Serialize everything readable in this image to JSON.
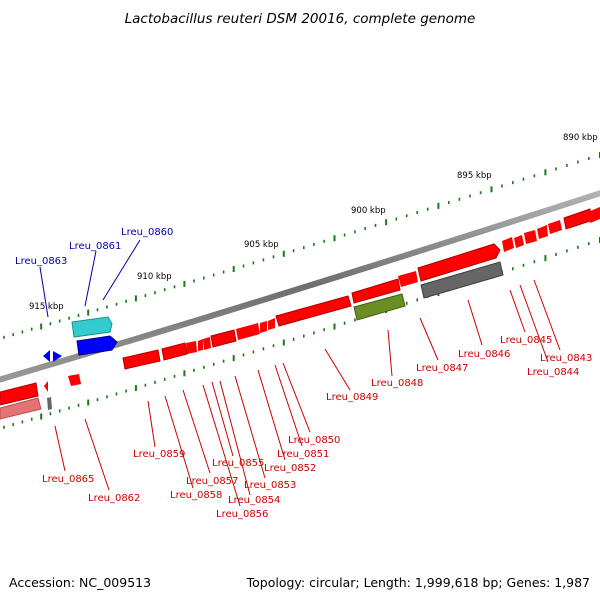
{
  "title": "Lactobacillus reuteri DSM 20016, complete genome",
  "footer": {
    "accession": "Accession: NC_009513",
    "summary": "Topology: circular; Length: 1,999,618 bp; Genes: 1,987"
  },
  "colors": {
    "backbone": "#7a7a7a",
    "tick": "#1a7a1a",
    "gene_red": "#ff0000",
    "gene_pink": "#e57373",
    "gene_gray": "#666666",
    "gene_olive": "#6b8e23",
    "gene_cyan": "#33cccc",
    "gene_blue": "#0000ff",
    "label_red": "#cc0000",
    "label_blue": "#0000aa"
  },
  "scale_ticks": [
    "890 kbp",
    "895 kbp",
    "900 kbp",
    "905 kbp",
    "910 kbp",
    "915 kbp"
  ],
  "gene_labels": [
    {
      "text": "Lreu_0843",
      "color": "red"
    },
    {
      "text": "Lreu_0844",
      "color": "red"
    },
    {
      "text": "Lreu_0845",
      "color": "red"
    },
    {
      "text": "Lreu_0846",
      "color": "red"
    },
    {
      "text": "Lreu_0847",
      "color": "red"
    },
    {
      "text": "Lreu_0848",
      "color": "red"
    },
    {
      "text": "Lreu_0849",
      "color": "red"
    },
    {
      "text": "Lreu_0850",
      "color": "red"
    },
    {
      "text": "Lreu_0851",
      "color": "red"
    },
    {
      "text": "Lreu_0852",
      "color": "red"
    },
    {
      "text": "Lreu_0853",
      "color": "red"
    },
    {
      "text": "Lreu_0854",
      "color": "red"
    },
    {
      "text": "Lreu_0855",
      "color": "red"
    },
    {
      "text": "Lreu_0856",
      "color": "red"
    },
    {
      "text": "Lreu_0857",
      "color": "red"
    },
    {
      "text": "Lreu_0858",
      "color": "red"
    },
    {
      "text": "Lreu_0859",
      "color": "red"
    },
    {
      "text": "Lreu_0860",
      "color": "blue"
    },
    {
      "text": "Lreu_0861",
      "color": "blue"
    },
    {
      "text": "Lreu_0862",
      "color": "red"
    },
    {
      "text": "Lreu_0863",
      "color": "blue"
    },
    {
      "text": "Lreu_0865",
      "color": "red"
    }
  ]
}
